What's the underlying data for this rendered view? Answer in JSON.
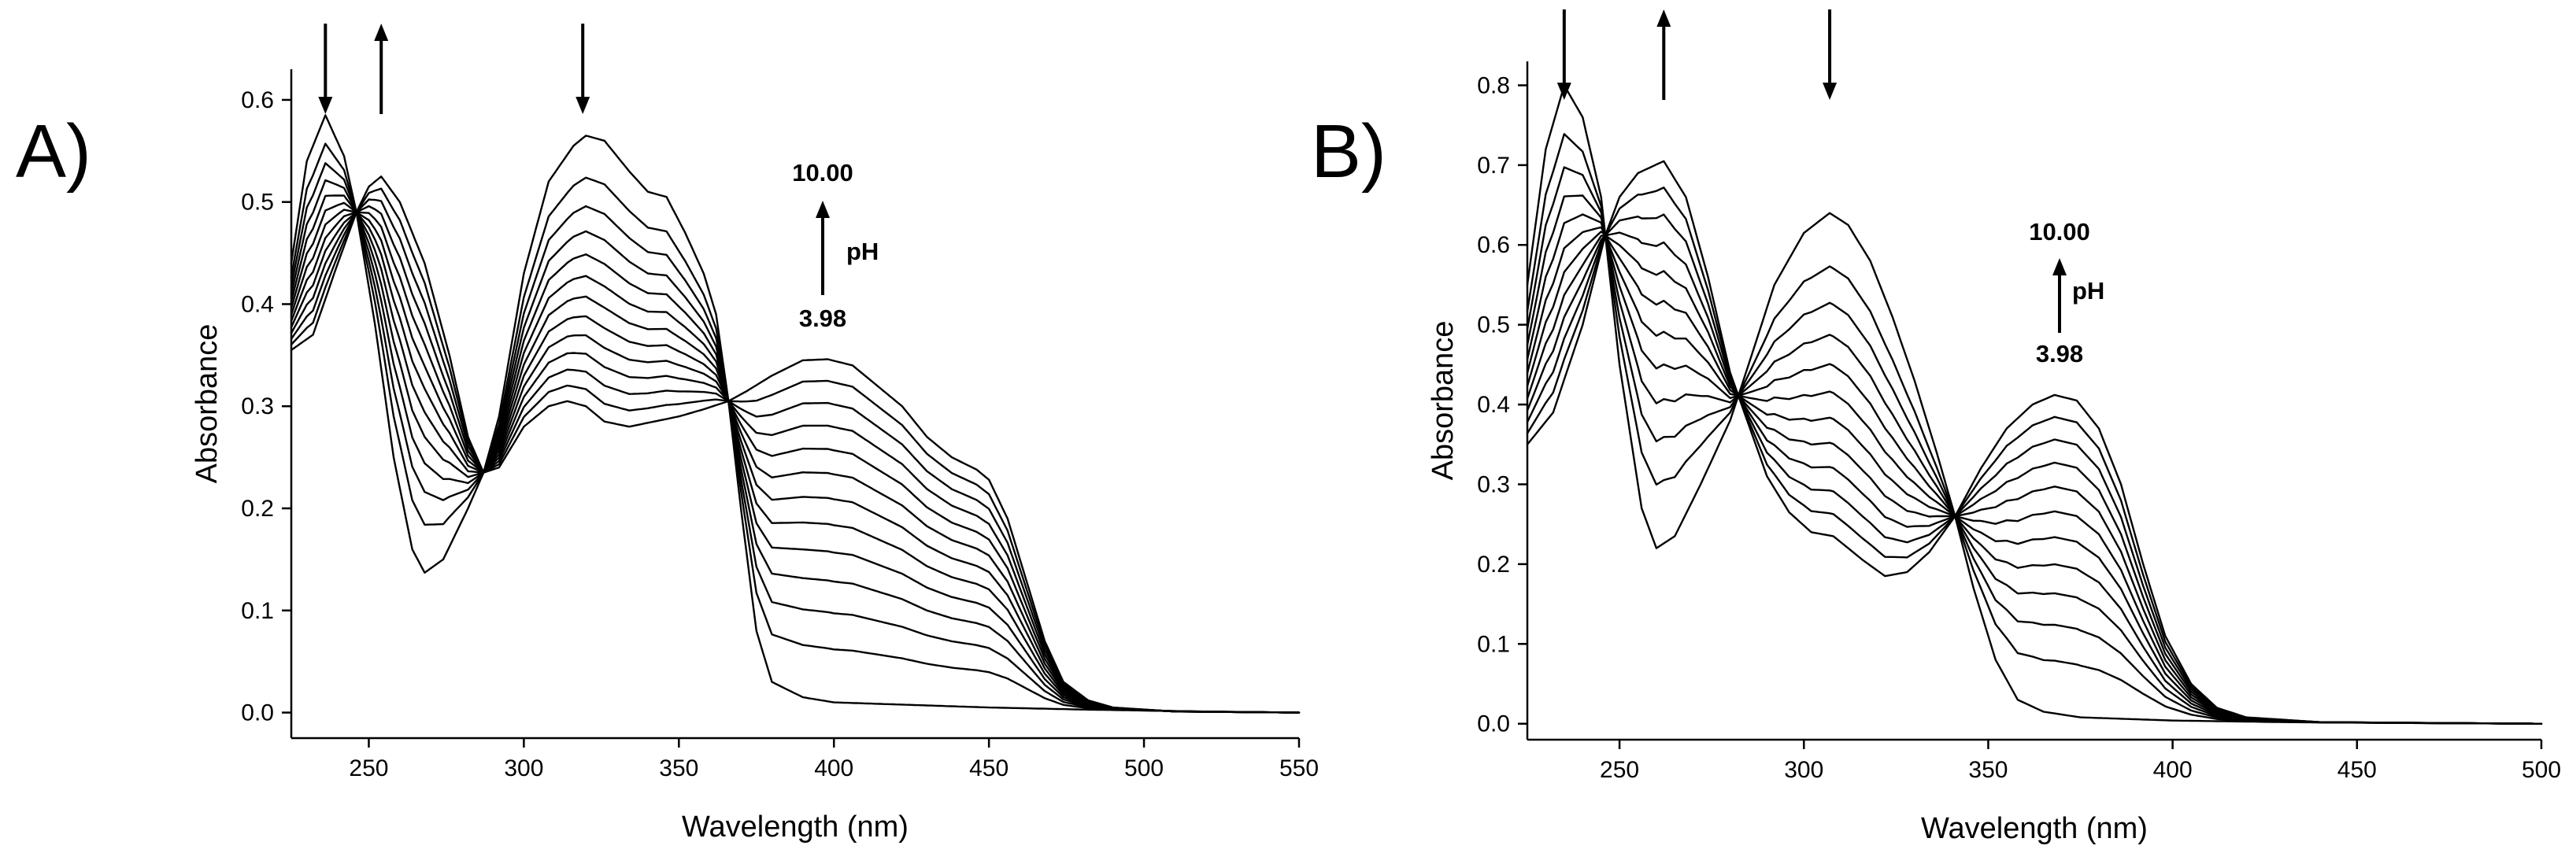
{
  "chart_data": [
    {
      "panel_label": "A)",
      "type": "line",
      "xlabel": "Wavelength (nm)",
      "ylabel": "Absorbance",
      "xlim": [
        225,
        550
      ],
      "ylim": [
        -0.025,
        0.63
      ],
      "x_ticks": [
        250,
        300,
        350,
        400,
        450,
        500,
        550
      ],
      "y_ticks": [
        0.0,
        0.1,
        0.2,
        0.3,
        0.4,
        0.5,
        0.6
      ],
      "y_tick_labels": [
        "0.0",
        "0.1",
        "0.2",
        "0.3",
        "0.4",
        "0.5",
        "0.6"
      ],
      "annotations": {
        "ph_high": "10.00",
        "ph_low": "3.98",
        "ph_unit": "pH"
      },
      "arrows": [
        {
          "x": 236,
          "direction": "down"
        },
        {
          "x": 254,
          "direction": "up"
        },
        {
          "x": 319,
          "direction": "down"
        }
      ],
      "series_count": 13,
      "series_order": "pH 3.98 (first) to pH 10.00 (last)",
      "endpoints": {
        "acid": [
          [
            225,
            0.44
          ],
          [
            230,
            0.54
          ],
          [
            236,
            0.585
          ],
          [
            242,
            0.545
          ],
          [
            246,
            0.49
          ],
          [
            252,
            0.38
          ],
          [
            258,
            0.25
          ],
          [
            264,
            0.16
          ],
          [
            268,
            0.137
          ],
          [
            274,
            0.15
          ],
          [
            282,
            0.2
          ],
          [
            287,
            0.235
          ],
          [
            292,
            0.29
          ],
          [
            300,
            0.43
          ],
          [
            308,
            0.52
          ],
          [
            316,
            0.555
          ],
          [
            320,
            0.565
          ],
          [
            326,
            0.56
          ],
          [
            334,
            0.53
          ],
          [
            340,
            0.51
          ],
          [
            346,
            0.505
          ],
          [
            352,
            0.47
          ],
          [
            358,
            0.43
          ],
          [
            362,
            0.39
          ],
          [
            366,
            0.305
          ],
          [
            370,
            0.2
          ],
          [
            375,
            0.08
          ],
          [
            380,
            0.03
          ],
          [
            390,
            0.015
          ],
          [
            400,
            0.01
          ],
          [
            420,
            0.008
          ],
          [
            450,
            0.005
          ],
          [
            480,
            0.003
          ],
          [
            520,
            0.001
          ],
          [
            550,
            0.0
          ]
        ],
        "base": [
          [
            225,
            0.355
          ],
          [
            232,
            0.37
          ],
          [
            240,
            0.44
          ],
          [
            246,
            0.49
          ],
          [
            250,
            0.515
          ],
          [
            254,
            0.525
          ],
          [
            260,
            0.5
          ],
          [
            268,
            0.44
          ],
          [
            276,
            0.35
          ],
          [
            282,
            0.27
          ],
          [
            287,
            0.235
          ],
          [
            292,
            0.24
          ],
          [
            300,
            0.28
          ],
          [
            308,
            0.3
          ],
          [
            314,
            0.305
          ],
          [
            320,
            0.3
          ],
          [
            326,
            0.285
          ],
          [
            334,
            0.28
          ],
          [
            342,
            0.285
          ],
          [
            350,
            0.29
          ],
          [
            358,
            0.297
          ],
          [
            366,
            0.305
          ],
          [
            372,
            0.315
          ],
          [
            380,
            0.33
          ],
          [
            390,
            0.345
          ],
          [
            398,
            0.346
          ],
          [
            406,
            0.34
          ],
          [
            414,
            0.32
          ],
          [
            422,
            0.3
          ],
          [
            430,
            0.27
          ],
          [
            438,
            0.25
          ],
          [
            446,
            0.238
          ],
          [
            450,
            0.228
          ],
          [
            456,
            0.19
          ],
          [
            462,
            0.13
          ],
          [
            468,
            0.07
          ],
          [
            474,
            0.03
          ],
          [
            482,
            0.012
          ],
          [
            490,
            0.005
          ],
          [
            510,
            0.001
          ],
          [
            550,
            0.0
          ]
        ]
      }
    },
    {
      "panel_label": "B)",
      "type": "line",
      "xlabel": "Wavelength (nm)",
      "ylabel": "Absorbance",
      "xlim": [
        225,
        500
      ],
      "ylim": [
        -0.02,
        0.83
      ],
      "x_ticks": [
        250,
        300,
        350,
        400,
        450,
        500
      ],
      "y_ticks": [
        0.0,
        0.1,
        0.2,
        0.3,
        0.4,
        0.5,
        0.6,
        0.7,
        0.8
      ],
      "y_tick_labels": [
        "0.0",
        "0.1",
        "0.2",
        "0.3",
        "0.4",
        "0.5",
        "0.6",
        "0.7",
        "0.8"
      ],
      "annotations": {
        "ph_high": "10.00",
        "ph_low": "3.98",
        "ph_unit": "pH"
      },
      "arrows": [
        {
          "x": 235,
          "direction": "down"
        },
        {
          "x": 262,
          "direction": "up"
        },
        {
          "x": 307,
          "direction": "down"
        }
      ],
      "series_count": 12,
      "series_order": "pH 3.98 (first) to pH 10.00 (last)",
      "endpoints": {
        "acid": [
          [
            225,
            0.55
          ],
          [
            230,
            0.72
          ],
          [
            235,
            0.8
          ],
          [
            240,
            0.76
          ],
          [
            245,
            0.66
          ],
          [
            250,
            0.45
          ],
          [
            256,
            0.27
          ],
          [
            260,
            0.22
          ],
          [
            265,
            0.235
          ],
          [
            272,
            0.3
          ],
          [
            280,
            0.38
          ],
          [
            285,
            0.45
          ],
          [
            292,
            0.55
          ],
          [
            300,
            0.615
          ],
          [
            307,
            0.64
          ],
          [
            312,
            0.625
          ],
          [
            318,
            0.58
          ],
          [
            324,
            0.51
          ],
          [
            330,
            0.43
          ],
          [
            336,
            0.34
          ],
          [
            341,
            0.26
          ],
          [
            346,
            0.17
          ],
          [
            352,
            0.08
          ],
          [
            358,
            0.03
          ],
          [
            365,
            0.015
          ],
          [
            375,
            0.008
          ],
          [
            400,
            0.004
          ],
          [
            430,
            0.002
          ],
          [
            460,
            0.001
          ],
          [
            500,
            0.0
          ]
        ],
        "base": [
          [
            225,
            0.35
          ],
          [
            232,
            0.39
          ],
          [
            240,
            0.5
          ],
          [
            246,
            0.61
          ],
          [
            250,
            0.66
          ],
          [
            255,
            0.69
          ],
          [
            262,
            0.705
          ],
          [
            268,
            0.66
          ],
          [
            274,
            0.56
          ],
          [
            280,
            0.44
          ],
          [
            285,
            0.375
          ],
          [
            290,
            0.31
          ],
          [
            296,
            0.265
          ],
          [
            302,
            0.24
          ],
          [
            308,
            0.235
          ],
          [
            316,
            0.205
          ],
          [
            322,
            0.185
          ],
          [
            328,
            0.19
          ],
          [
            334,
            0.215
          ],
          [
            341,
            0.26
          ],
          [
            348,
            0.32
          ],
          [
            355,
            0.37
          ],
          [
            362,
            0.4
          ],
          [
            368,
            0.412
          ],
          [
            374,
            0.405
          ],
          [
            380,
            0.37
          ],
          [
            386,
            0.3
          ],
          [
            392,
            0.2
          ],
          [
            398,
            0.11
          ],
          [
            405,
            0.05
          ],
          [
            412,
            0.02
          ],
          [
            420,
            0.008
          ],
          [
            440,
            0.002
          ],
          [
            470,
            0.001
          ],
          [
            500,
            0.0
          ]
        ]
      }
    }
  ]
}
